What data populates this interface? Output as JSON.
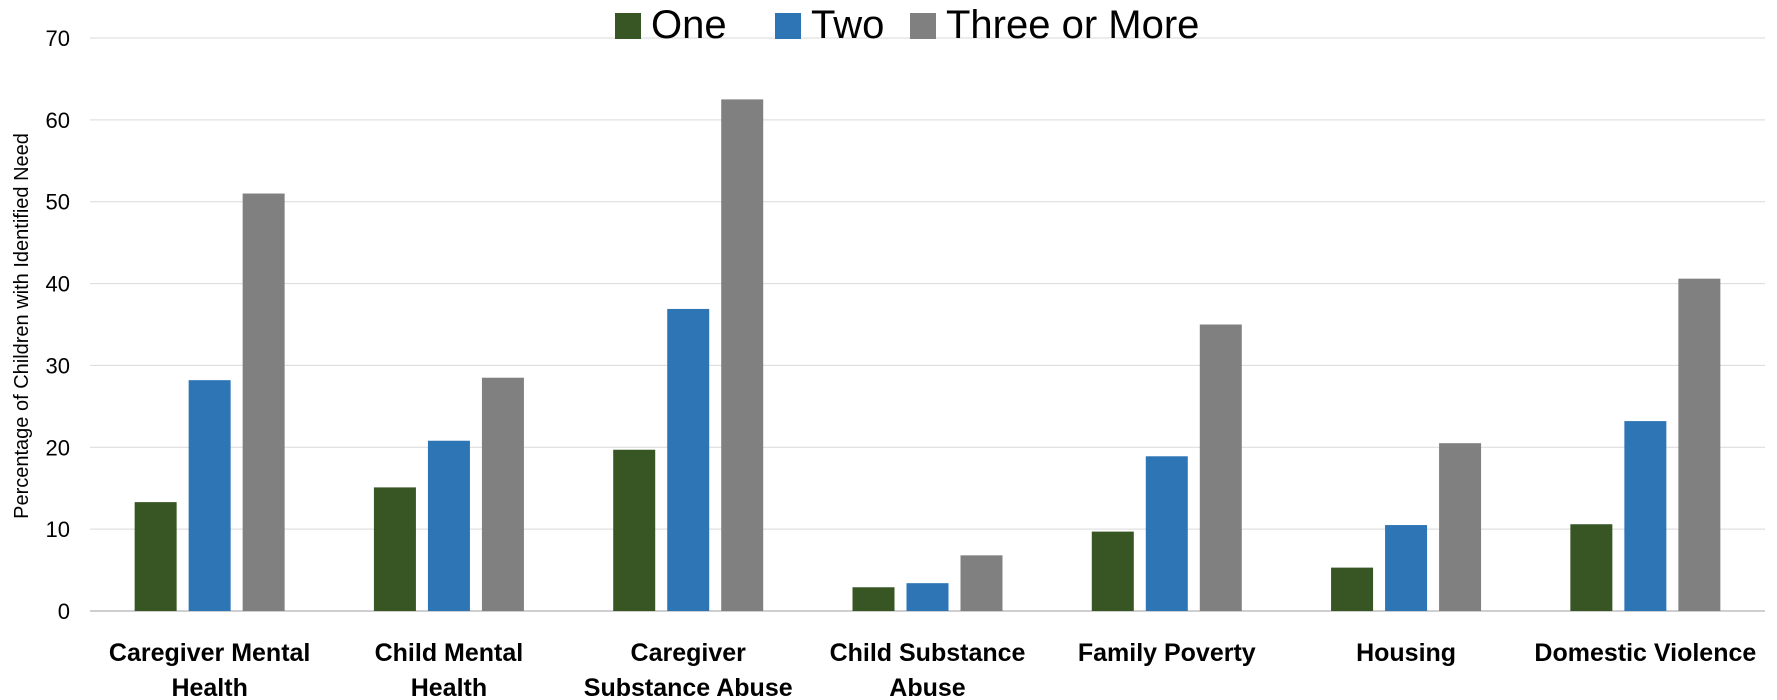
{
  "chart_data": {
    "type": "bar",
    "categories": [
      [
        "Caregiver Mental",
        "Health"
      ],
      [
        "Child Mental",
        "Health"
      ],
      [
        "Caregiver",
        "Substance Abuse"
      ],
      [
        "Child Substance",
        "Abuse"
      ],
      [
        "Family Poverty"
      ],
      [
        "Housing"
      ],
      [
        "Domestic Violence"
      ]
    ],
    "series": [
      {
        "name": "One",
        "color": "#375623",
        "values": [
          13.3,
          15.1,
          19.7,
          2.9,
          9.7,
          5.3,
          10.6
        ]
      },
      {
        "name": "Two",
        "color": "#2e75b6",
        "values": [
          28.2,
          20.8,
          36.9,
          3.4,
          18.9,
          10.5,
          23.2
        ]
      },
      {
        "name": "Three or More",
        "color": "#808080",
        "values": [
          51.0,
          28.5,
          62.5,
          6.8,
          35.0,
          20.5,
          40.6
        ]
      }
    ],
    "title": "",
    "xlabel": "",
    "ylabel": "Percentage of Children with Identified Need",
    "ylim": [
      0,
      70
    ],
    "yticks": [
      0,
      10,
      20,
      30,
      40,
      50,
      60,
      70
    ],
    "grid": true,
    "legend_position": "top-center"
  }
}
